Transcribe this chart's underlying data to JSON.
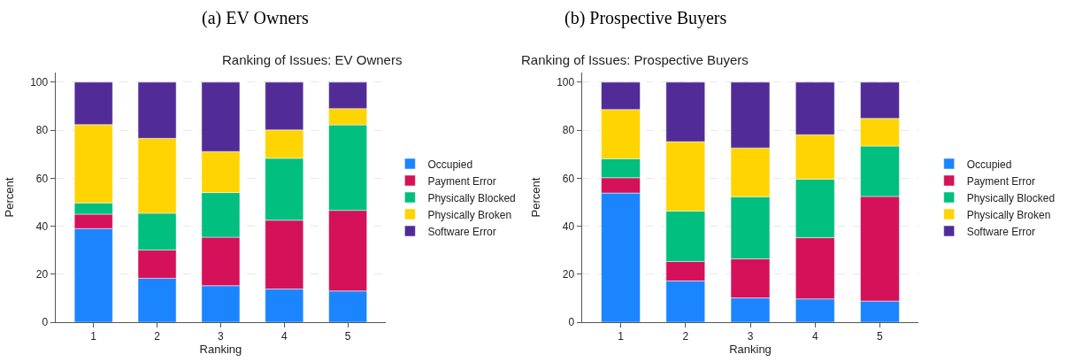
{
  "chart_data": [
    {
      "type": "bar",
      "title": "(a) EV Owners",
      "subtitle": "Ranking of Issues: EV Owners",
      "xlabel": "Ranking",
      "ylabel": "Percent",
      "categories": [
        "1",
        "2",
        "3",
        "4",
        "5"
      ],
      "stacked": true,
      "ylim": [
        0,
        104
      ],
      "yticks": [
        0,
        20,
        40,
        60,
        80,
        100
      ],
      "grid": "y",
      "legend": "right",
      "series": [
        {
          "name": "Occupied",
          "color": "#1a85ff",
          "values": [
            39.0,
            18.3,
            15.2,
            13.8,
            13.0
          ]
        },
        {
          "name": "Payment Error",
          "color": "#d41159",
          "values": [
            6.0,
            11.8,
            20.2,
            28.7,
            33.6
          ]
        },
        {
          "name": "Physically Blocked",
          "color": "#00bf7f",
          "values": [
            4.7,
            15.3,
            18.6,
            25.8,
            35.6
          ]
        },
        {
          "name": "Physically Broken",
          "color": "#ffd400",
          "values": [
            32.6,
            31.2,
            17.1,
            11.8,
            6.8
          ]
        },
        {
          "name": "Software Error",
          "color": "#512c96",
          "values": [
            17.7,
            23.4,
            28.9,
            19.9,
            11.0
          ]
        }
      ]
    },
    {
      "type": "bar",
      "title": "(b) Prospective Buyers",
      "subtitle": "Ranking of Issues: Prospective Buyers",
      "xlabel": "Ranking",
      "ylabel": "Percent",
      "categories": [
        "1",
        "2",
        "3",
        "4",
        "5"
      ],
      "stacked": true,
      "ylim": [
        0,
        104
      ],
      "yticks": [
        0,
        20,
        40,
        60,
        80,
        100
      ],
      "grid": "y",
      "legend": "right",
      "series": [
        {
          "name": "Occupied",
          "color": "#1a85ff",
          "values": [
            53.8,
            17.2,
            10.1,
            9.7,
            8.8
          ]
        },
        {
          "name": "Payment Error",
          "color": "#d41159",
          "values": [
            6.4,
            8.1,
            16.3,
            25.5,
            43.6
          ]
        },
        {
          "name": "Physically Blocked",
          "color": "#00bf7f",
          "values": [
            7.9,
            21.0,
            25.9,
            24.4,
            21.0
          ]
        },
        {
          "name": "Physically Broken",
          "color": "#ffd400",
          "values": [
            20.5,
            28.9,
            20.3,
            18.5,
            11.5
          ]
        },
        {
          "name": "Software Error",
          "color": "#512c96",
          "values": [
            11.4,
            24.8,
            27.4,
            21.9,
            15.1
          ]
        }
      ]
    }
  ]
}
